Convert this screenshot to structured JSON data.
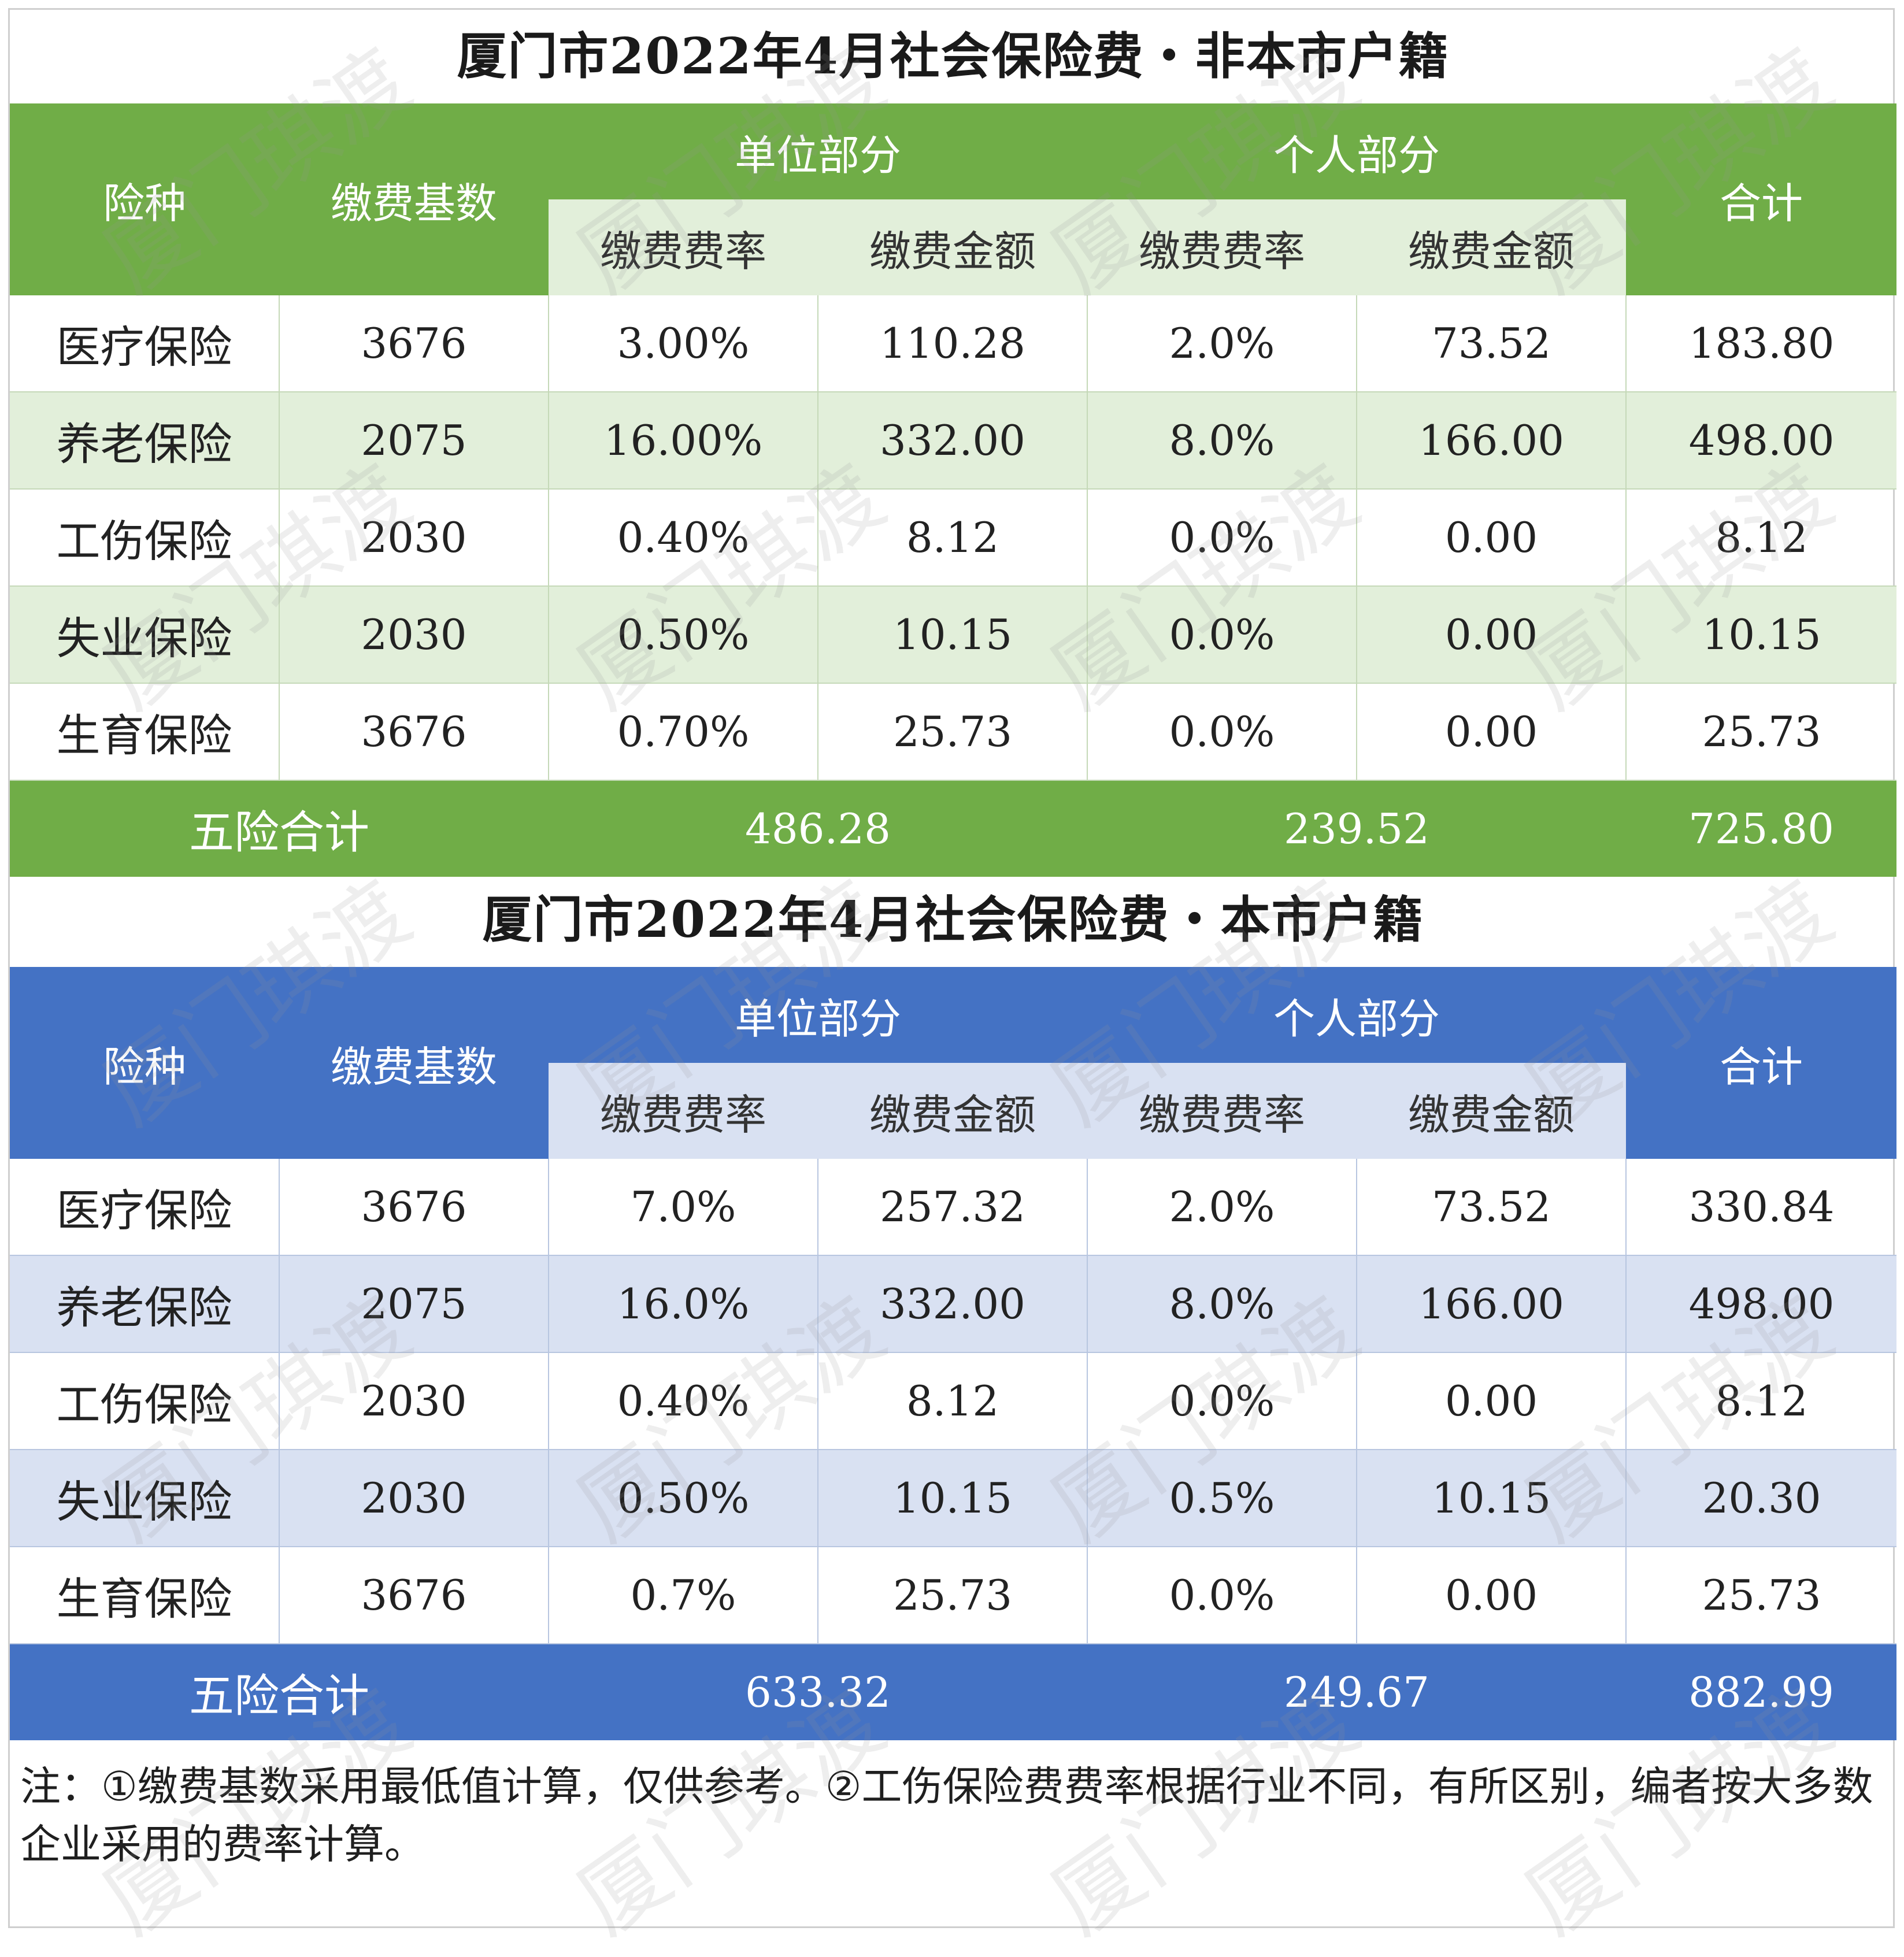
{
  "watermark": "厦门琪渡",
  "tables": [
    {
      "title": "厦门市2022年4月社会保险费・非本市户籍",
      "headers": {
        "type": "险种",
        "base": "缴费基数",
        "unit": "单位部分",
        "personal": "个人部分",
        "total": "合计",
        "rate": "缴费费率",
        "amount": "缴费金额"
      },
      "rows": [
        {
          "name": "医疗保险",
          "base": "3676",
          "unit_rate": "3.00%",
          "unit_amount": "110.28",
          "personal_rate": "2.0%",
          "personal_amount": "73.52",
          "total": "183.80"
        },
        {
          "name": "养老保险",
          "base": "2075",
          "unit_rate": "16.00%",
          "unit_amount": "332.00",
          "personal_rate": "8.0%",
          "personal_amount": "166.00",
          "total": "498.00"
        },
        {
          "name": "工伤保险",
          "base": "2030",
          "unit_rate": "0.40%",
          "unit_amount": "8.12",
          "personal_rate": "0.0%",
          "personal_amount": "0.00",
          "total": "8.12"
        },
        {
          "name": "失业保险",
          "base": "2030",
          "unit_rate": "0.50%",
          "unit_amount": "10.15",
          "personal_rate": "0.0%",
          "personal_amount": "0.00",
          "total": "10.15"
        },
        {
          "name": "生育保险",
          "base": "3676",
          "unit_rate": "0.70%",
          "unit_amount": "25.73",
          "personal_rate": "0.0%",
          "personal_amount": "0.00",
          "total": "25.73"
        }
      ],
      "summary": {
        "label": "五险合计",
        "unit": "486.28",
        "personal": "239.52",
        "total": "725.80"
      },
      "accent": "#70ad47",
      "light": "#e2efda"
    },
    {
      "title": "厦门市2022年4月社会保险费・本市户籍",
      "headers": {
        "type": "险种",
        "base": "缴费基数",
        "unit": "单位部分",
        "personal": "个人部分",
        "total": "合计",
        "rate": "缴费费率",
        "amount": "缴费金额"
      },
      "rows": [
        {
          "name": "医疗保险",
          "base": "3676",
          "unit_rate": "7.0%",
          "unit_amount": "257.32",
          "personal_rate": "2.0%",
          "personal_amount": "73.52",
          "total": "330.84"
        },
        {
          "name": "养老保险",
          "base": "2075",
          "unit_rate": "16.0%",
          "unit_amount": "332.00",
          "personal_rate": "8.0%",
          "personal_amount": "166.00",
          "total": "498.00"
        },
        {
          "name": "工伤保险",
          "base": "2030",
          "unit_rate": "0.40%",
          "unit_amount": "8.12",
          "personal_rate": "0.0%",
          "personal_amount": "0.00",
          "total": "8.12"
        },
        {
          "name": "失业保险",
          "base": "2030",
          "unit_rate": "0.50%",
          "unit_amount": "10.15",
          "personal_rate": "0.5%",
          "personal_amount": "10.15",
          "total": "20.30"
        },
        {
          "name": "生育保险",
          "base": "3676",
          "unit_rate": "0.7%",
          "unit_amount": "25.73",
          "personal_rate": "0.0%",
          "personal_amount": "0.00",
          "total": "25.73"
        }
      ],
      "summary": {
        "label": "五险合计",
        "unit": "633.32",
        "personal": "249.67",
        "total": "882.99"
      },
      "accent": "#4472c4",
      "light": "#d9e1f2"
    }
  ],
  "note": "注：①缴费基数采用最低值计算，仅供参考。②工伤保险费费率根据行业不同，有所区别，编者按大多数企业采用的费率计算。"
}
